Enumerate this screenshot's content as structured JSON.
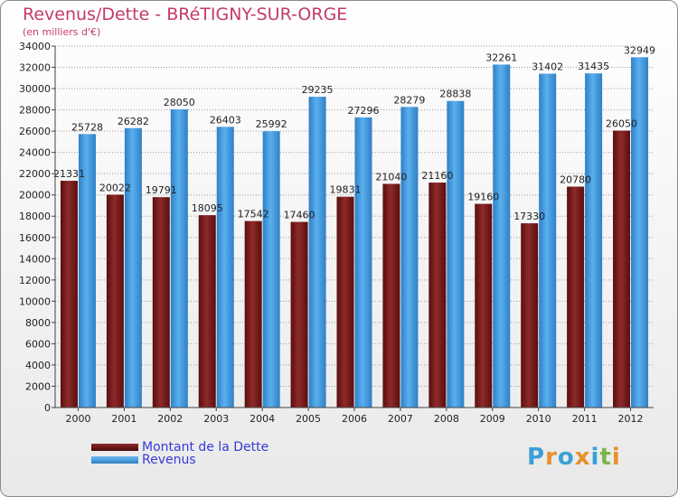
{
  "title": "Revenus/Dette - BRéTIGNY-SUR-ORGE",
  "subtitle": "(en milliers d'€)",
  "logo": {
    "letters": [
      "P",
      "r",
      "o",
      "x",
      "i",
      "t",
      "i"
    ],
    "colors": [
      "#3aa0d8",
      "#e8902a",
      "#3aa0d8",
      "#e8902a",
      "#3aa0d8",
      "#7ab648",
      "#e8902a"
    ]
  },
  "colors": {
    "dette": "#6b1010",
    "revenus": "#3a8fd8",
    "title": "#c43a6a",
    "legend_text": "#3a3ad6"
  },
  "chart_data": {
    "type": "bar",
    "categories": [
      "2000",
      "2001",
      "2002",
      "2003",
      "2004",
      "2005",
      "2006",
      "2007",
      "2008",
      "2009",
      "2010",
      "2011",
      "2012"
    ],
    "series": [
      {
        "name": "Montant de la Dette",
        "values": [
          21331,
          20022,
          19791,
          18095,
          17542,
          17460,
          19831,
          21040,
          21160,
          19160,
          17330,
          20780,
          26050
        ],
        "labels": [
          "21331",
          "20022",
          "19791",
          "18095",
          "17542",
          "17460",
          "19831",
          "21040",
          "21160",
          "19160",
          "17330",
          "20780",
          "26050"
        ]
      },
      {
        "name": "Revenus",
        "values": [
          25728,
          26282,
          28050,
          26403,
          25992,
          29235,
          27296,
          28279,
          28838,
          32261,
          31402,
          31435,
          32949
        ],
        "labels": [
          "25728",
          "26282",
          "28050",
          "26403",
          "25992",
          "29235",
          "27296",
          "28279",
          "28838",
          "32261",
          "31402",
          "31435",
          "32949"
        ]
      }
    ],
    "ylim": [
      0,
      34000
    ],
    "yticks": [
      0,
      2000,
      4000,
      6000,
      8000,
      10000,
      12000,
      14000,
      16000,
      18000,
      20000,
      22000,
      24000,
      26000,
      28000,
      30000,
      32000,
      34000
    ],
    "grid": true,
    "legend": "bottom-left"
  }
}
